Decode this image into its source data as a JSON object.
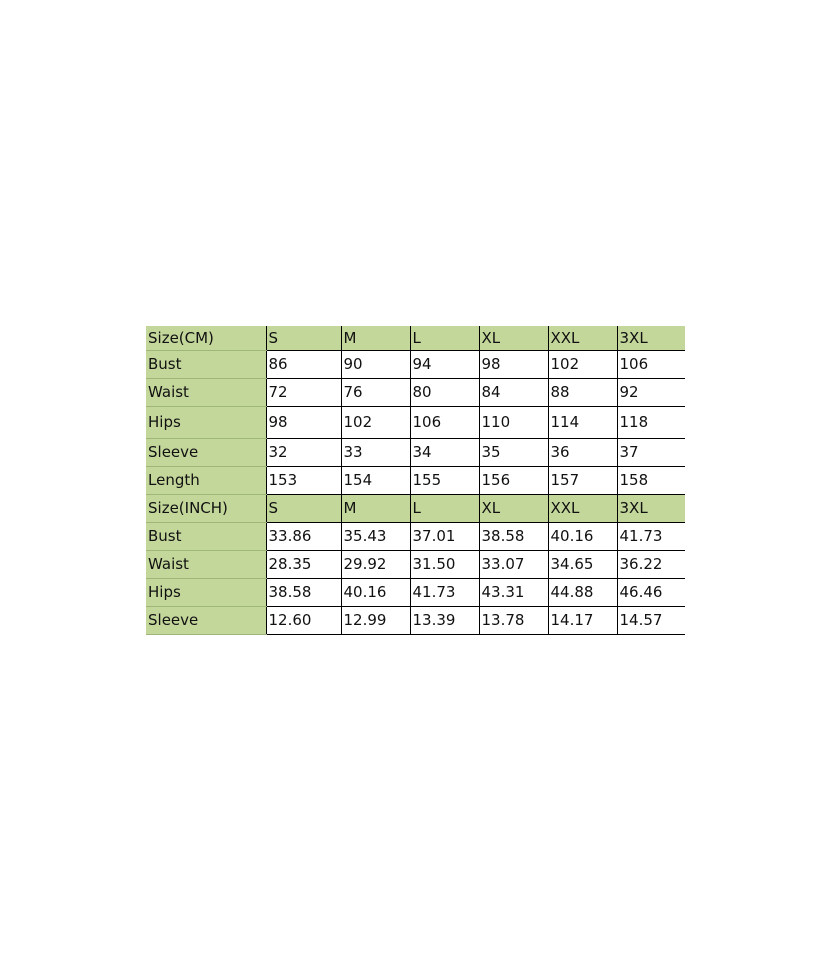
{
  "accent_color": "#c4d79b",
  "sections": [
    {
      "header": [
        "Size(CM)",
        "S",
        "M",
        "L",
        "XL",
        "XXL",
        "3XL"
      ],
      "rows": [
        [
          "Bust",
          "86",
          "90",
          "94",
          "98",
          "102",
          "106"
        ],
        [
          "Waist",
          "72",
          "76",
          "80",
          "84",
          "88",
          "92"
        ],
        [
          "Hips",
          "98",
          "102",
          "106",
          "110",
          "114",
          "118"
        ],
        [
          "Sleeve",
          "32",
          "33",
          "34",
          "35",
          "36",
          "37"
        ],
        [
          "Length",
          "153",
          "154",
          "155",
          "156",
          "157",
          "158"
        ]
      ]
    },
    {
      "header": [
        "Size(INCH)",
        "S",
        "M",
        "L",
        "XL",
        "XXL",
        "3XL"
      ],
      "rows": [
        [
          "Bust",
          "33.86",
          "35.43",
          "37.01",
          "38.58",
          "40.16",
          "41.73"
        ],
        [
          "Waist",
          "28.35",
          "29.92",
          "31.50",
          "33.07",
          "34.65",
          "36.22"
        ],
        [
          "Hips",
          "38.58",
          "40.16",
          "41.73",
          "43.31",
          "44.88",
          "46.46"
        ],
        [
          "Sleeve",
          "12.60",
          "12.99",
          "13.39",
          "13.78",
          "14.17",
          "14.57"
        ]
      ]
    }
  ]
}
